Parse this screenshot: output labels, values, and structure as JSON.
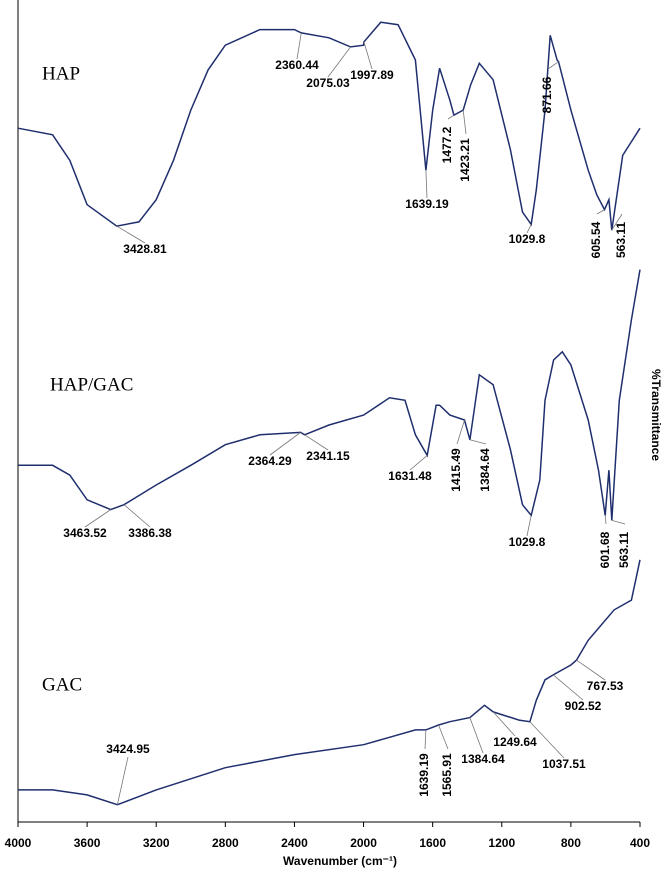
{
  "chart_data": {
    "type": "line",
    "x_label": "Wavenumber (cm⁻¹)",
    "y_label": "%Transmittance",
    "xlim": [
      4000,
      400
    ],
    "xticks": [
      4000,
      3600,
      3200,
      2800,
      2400,
      2000,
      1600,
      1200,
      800,
      400
    ],
    "ylim": [
      0,
      100
    ],
    "series": [
      {
        "name": "HAP",
        "color": "#1f2f6e",
        "x": [
          4000,
          3800,
          3700,
          3600,
          3428.81,
          3300,
          3200,
          3100,
          3000,
          2900,
          2800,
          2600,
          2400,
          2360.44,
          2200,
          2075.03,
          2000,
          1997.89,
          1900,
          1800,
          1700,
          1639.19,
          1600,
          1560,
          1500,
          1477.2,
          1423.21,
          1380,
          1330,
          1250,
          1150,
          1080,
          1029.8,
          1000,
          950,
          920,
          880,
          871.66,
          800,
          700,
          650,
          605.54,
          580,
          563.11,
          500,
          400
        ],
        "values": [
          84.4,
          83.6,
          80.5,
          75.1,
          72.5,
          73.0,
          75.7,
          80.5,
          86.6,
          91.5,
          94.5,
          96.4,
          96.4,
          96.0,
          95.4,
          94.3,
          94.5,
          94.9,
          97.3,
          97.0,
          92.7,
          79.3,
          86.6,
          91.7,
          87.8,
          86.0,
          86.6,
          89.7,
          92.3,
          90.3,
          81.8,
          74.2,
          72.7,
          76.9,
          86.6,
          95.7,
          92.7,
          92.5,
          86.6,
          79.3,
          76.3,
          74.5,
          75.7,
          72.0,
          81.1,
          84.4
        ],
        "peaks": [
          3428.81,
          2360.44,
          2075.03,
          1997.89,
          1639.19,
          1477.2,
          1423.21,
          1029.8,
          871.66,
          605.54,
          563.11
        ]
      },
      {
        "name": "HAP/GAC",
        "color": "#1f2f6e",
        "x": [
          4000,
          3800,
          3700,
          3600,
          3463.52,
          3386.38,
          3200,
          3000,
          2800,
          2600,
          2364.29,
          2341.15,
          2200,
          2000,
          1850,
          1760,
          1700,
          1631.48,
          1580,
          1560,
          1500,
          1415.49,
          1384.64,
          1330,
          1250,
          1150,
          1080,
          1029.8,
          980,
          950,
          900,
          850,
          800,
          700,
          640,
          601.68,
          580,
          563.11,
          520,
          450,
          400
        ],
        "values": [
          43.4,
          43.4,
          42.2,
          39.2,
          38.0,
          38.6,
          41.0,
          43.4,
          45.9,
          47.1,
          47.4,
          47.1,
          48.3,
          49.5,
          51.6,
          51.3,
          47.1,
          44.6,
          50.7,
          50.7,
          49.5,
          48.9,
          46.5,
          54.4,
          53.2,
          45.3,
          38.6,
          37.3,
          41.6,
          51.3,
          56.2,
          57.2,
          55.6,
          48.9,
          42.8,
          37.3,
          42.8,
          36.7,
          51.3,
          61.1,
          67.2
        ],
        "peaks": [
          3463.52,
          3386.38,
          2364.29,
          2341.15,
          1631.48,
          1415.49,
          1384.64,
          1029.8,
          601.68,
          563.11
        ]
      },
      {
        "name": "GAC",
        "color": "#1f2f6e",
        "x": [
          4000,
          3800,
          3600,
          3424.95,
          3200,
          2800,
          2400,
          2000,
          1700,
          1639.19,
          1565.91,
          1500,
          1384.64,
          1300,
          1249.64,
          1100,
          1037.51,
          1000,
          950,
          902.52,
          800,
          767.53,
          700,
          550,
          450,
          400
        ],
        "values": [
          3.9,
          3.9,
          3.3,
          2.1,
          3.9,
          6.6,
          8.2,
          9.4,
          11.2,
          11.2,
          11.8,
          12.2,
          12.7,
          14.2,
          13.4,
          12.4,
          12.2,
          14.8,
          17.3,
          17.9,
          19.1,
          19.7,
          22.1,
          25.8,
          27.0,
          31.9
        ],
        "peaks": [
          3424.95,
          1639.19,
          1565.91,
          1384.64,
          1249.64,
          1037.51,
          902.52,
          767.53
        ]
      }
    ]
  }
}
